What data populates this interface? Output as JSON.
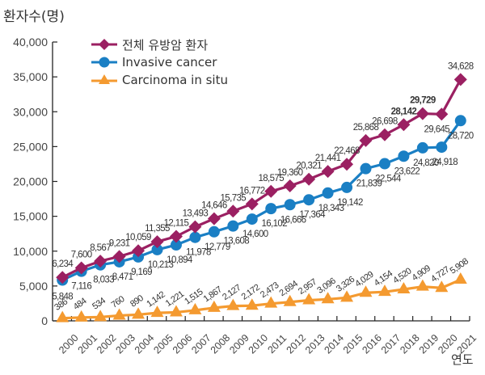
{
  "chart_data": {
    "type": "line",
    "title": "",
    "ylabel": "환자수(명)",
    "xlabel": "연도",
    "ylim": [
      0,
      40000
    ],
    "yticks": [
      0,
      5000,
      10000,
      15000,
      20000,
      25000,
      30000,
      35000,
      40000
    ],
    "ytick_labels": [
      "0",
      "5,000",
      "10,000",
      "15,000",
      "20,000",
      "25,000",
      "30,000",
      "35,000",
      "40,000"
    ],
    "grid": false,
    "legend_position": "top-left",
    "x": [
      "2000",
      "2001",
      "2002",
      "2003",
      "2004",
      "2005",
      "2006",
      "2007",
      "2008",
      "2009",
      "2010",
      "2011",
      "2012",
      "2013",
      "2014",
      "2015",
      "2016",
      "2017",
      "2018",
      "2019",
      "2020",
      "2021"
    ],
    "series": [
      {
        "name": "전체 유방암 환자",
        "color": "#9b2062",
        "marker": "diamond",
        "values": [
          6234,
          7600,
          8567,
          9231,
          10059,
          11355,
          12115,
          13493,
          14646,
          15735,
          16772,
          18575,
          19360,
          20321,
          21441,
          22468,
          25868,
          26698,
          28142,
          29729,
          29645,
          34628
        ],
        "labels": [
          "6,234",
          "7,600",
          "8,567",
          "9,231",
          "10,059",
          "11,355",
          "12,115",
          "13,493",
          "14,646",
          "15,735",
          "16,772",
          "18,575",
          "19,360",
          "20,321",
          "21,441",
          "22,468",
          "25,868",
          "26,698",
          "28,142",
          "29,729",
          "29,645",
          "34,628"
        ]
      },
      {
        "name": "Invasive cancer",
        "color": "#1a7fc4",
        "marker": "circle",
        "values": [
          5848,
          7116,
          8033,
          8471,
          9169,
          10213,
          10894,
          11978,
          12779,
          13608,
          14600,
          16102,
          16666,
          17364,
          18343,
          19142,
          21839,
          22544,
          23622,
          24820,
          24918,
          28720
        ],
        "labels": [
          "5,848",
          "7,116",
          "8,033",
          "8,471",
          "9,169",
          "10,213",
          "10,894",
          "11,978",
          "12,779",
          "13,608",
          "14,600",
          "16,102",
          "16,666",
          "17,364",
          "18,343",
          "19,142",
          "21,839",
          "22,544",
          "23,622",
          "24,820",
          "24,918",
          "28,720"
        ]
      },
      {
        "name": "Carcinoma in situ",
        "color": "#f49a30",
        "marker": "triangle",
        "values": [
          386,
          484,
          534,
          760,
          890,
          1142,
          1221,
          1515,
          1867,
          2127,
          2172,
          2473,
          2694,
          2957,
          3096,
          3326,
          4029,
          4154,
          4520,
          4909,
          4727,
          5908
        ],
        "labels": [
          "386",
          "484",
          "534",
          "760",
          "890",
          "1,142",
          "1,221",
          "1,515",
          "1,867",
          "2,127",
          "2,172",
          "2,473",
          "2,694",
          "2,957",
          "3,096",
          "3,326",
          "4,029",
          "4,154",
          "4,520",
          "4,909",
          "4,727",
          "5,908"
        ]
      }
    ]
  }
}
